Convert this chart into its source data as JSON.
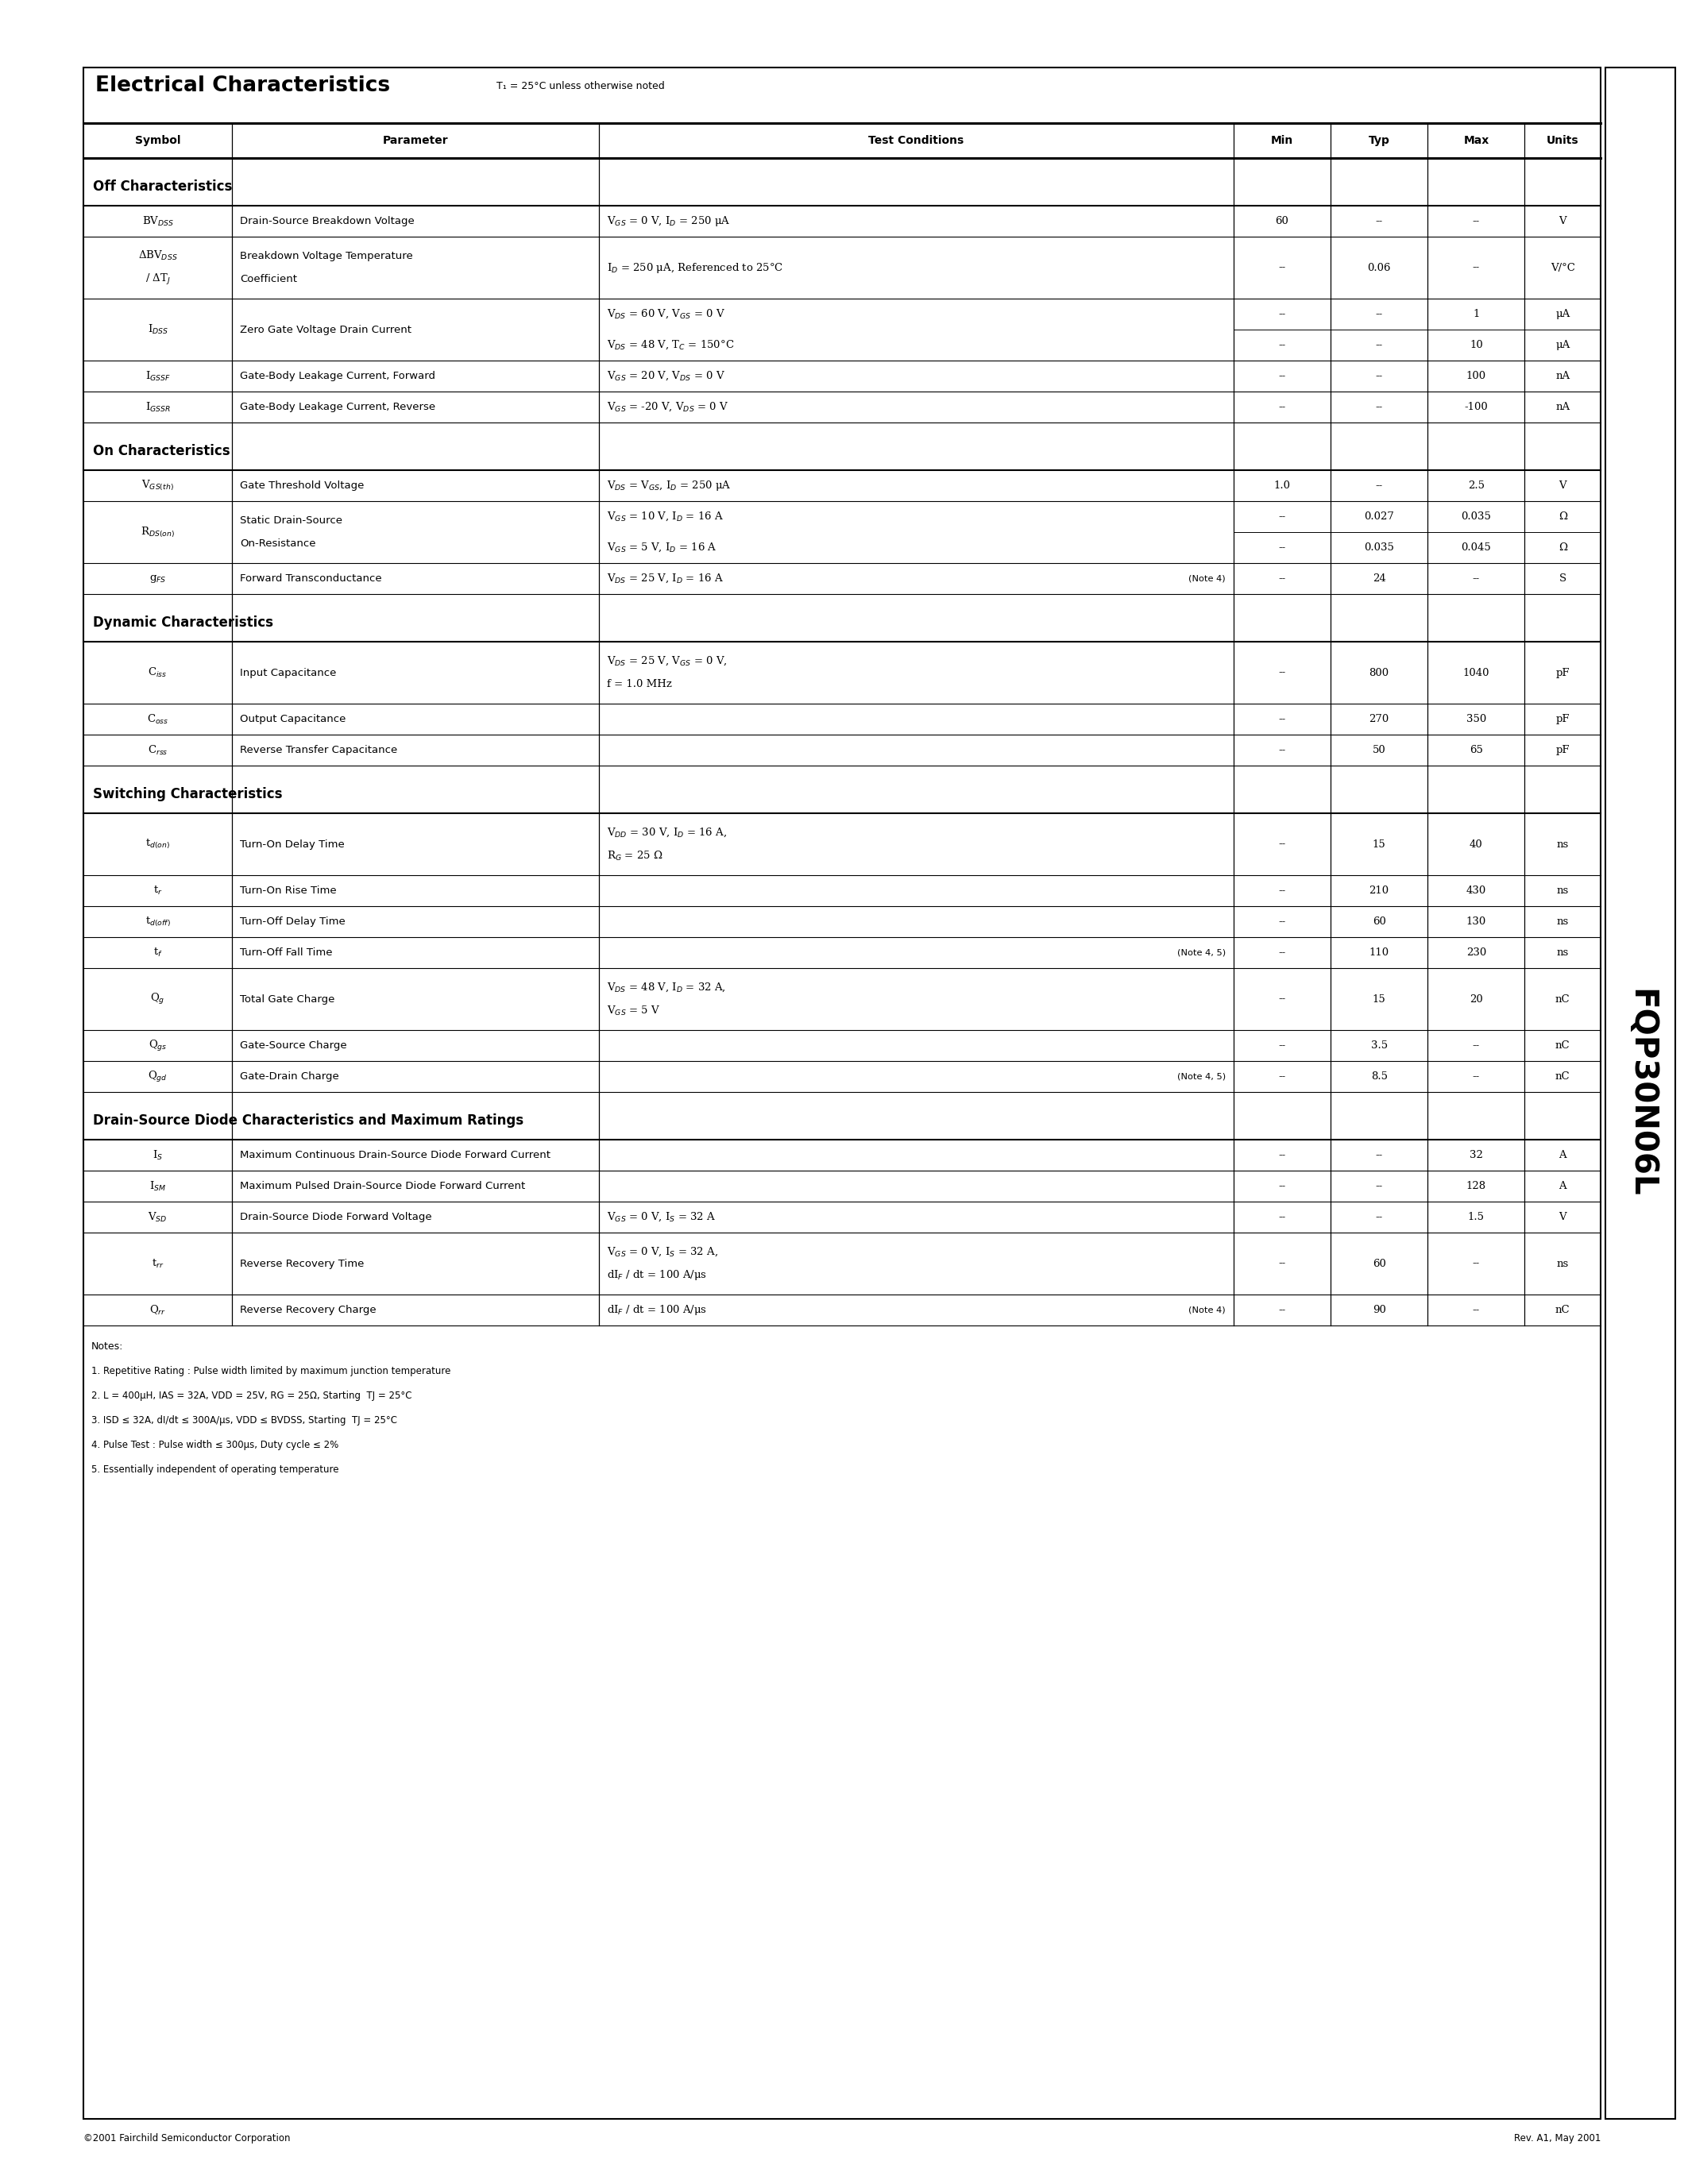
{
  "page_bg": "#ffffff",
  "title": "Electrical Characteristics",
  "title_note": "T₁ = 25°C unless otherwise noted",
  "sidebar_text": "FQP30N06L",
  "header_cols": [
    "Symbol",
    "Parameter",
    "Test Conditions",
    "Min",
    "Typ",
    "Max",
    "Units"
  ],
  "footer_left": "©2001 Fairchild Semiconductor Corporation",
  "footer_right": "Rev. A1, May 2001",
  "sections": [
    {
      "name": "Off Characteristics",
      "rows": [
        {
          "symbol": "BV$_{DSS}$",
          "parameter": "Drain-Source Breakdown Voltage",
          "conditions": "V$_{GS}$ = 0 V, I$_D$ = 250 μA",
          "min": "60",
          "typ": "--",
          "max": "--",
          "units": "V",
          "note": "",
          "double": false
        },
        {
          "symbol": "ΔBV$_{DSS}$\n/ ΔT$_J$",
          "parameter": "Breakdown Voltage Temperature\nCoefficient",
          "conditions": "I$_D$ = 250 μA, Referenced to 25°C",
          "min": "--",
          "typ": "0.06",
          "max": "--",
          "units": "V/°C",
          "note": "",
          "double": false
        },
        {
          "symbol": "I$_{DSS}$",
          "parameter": "Zero Gate Voltage Drain Current",
          "conditions": "V$_{DS}$ = 60 V, V$_{GS}$ = 0 V",
          "conditions2": "V$_{DS}$ = 48 V, T$_C$ = 150°C",
          "min": "--",
          "typ": "--",
          "max": "1",
          "units": "μA",
          "min2": "--",
          "typ2": "--",
          "max2": "10",
          "units2": "μA",
          "note": "",
          "double": true
        },
        {
          "symbol": "I$_{GSSF}$",
          "parameter": "Gate-Body Leakage Current, Forward",
          "conditions": "V$_{GS}$ = 20 V, V$_{DS}$ = 0 V",
          "min": "--",
          "typ": "--",
          "max": "100",
          "units": "nA",
          "note": "",
          "double": false
        },
        {
          "symbol": "I$_{GSSR}$",
          "parameter": "Gate-Body Leakage Current, Reverse",
          "conditions": "V$_{GS}$ = -20 V, V$_{DS}$ = 0 V",
          "min": "--",
          "typ": "--",
          "max": "-100",
          "units": "nA",
          "note": "",
          "double": false
        }
      ]
    },
    {
      "name": "On Characteristics",
      "rows": [
        {
          "symbol": "V$_{GS(th)}$",
          "parameter": "Gate Threshold Voltage",
          "conditions": "V$_{DS}$ = V$_{GS}$, I$_D$ = 250 μA",
          "min": "1.0",
          "typ": "--",
          "max": "2.5",
          "units": "V",
          "note": "",
          "double": false
        },
        {
          "symbol": "R$_{DS(on)}$",
          "parameter": "Static Drain-Source\nOn-Resistance",
          "conditions": "V$_{GS}$ = 10 V, I$_D$ = 16 A",
          "conditions2": "V$_{GS}$ = 5 V, I$_D$ = 16 A",
          "min": "--",
          "typ": "0.027",
          "max": "0.035",
          "units": "Ω",
          "min2": "--",
          "typ2": "0.035",
          "max2": "0.045",
          "units2": "Ω",
          "note": "",
          "double": true
        },
        {
          "symbol": "g$_{FS}$",
          "parameter": "Forward Transconductance",
          "conditions": "V$_{DS}$ = 25 V, I$_D$ = 16 A",
          "min": "--",
          "typ": "24",
          "max": "--",
          "units": "S",
          "note": "(Note 4)",
          "double": false
        }
      ]
    },
    {
      "name": "Dynamic Characteristics",
      "rows": [
        {
          "symbol": "C$_{iss}$",
          "parameter": "Input Capacitance",
          "conditions": "V$_{DS}$ = 25 V, V$_{GS}$ = 0 V,\nf = 1.0 MHz",
          "min": "--",
          "typ": "800",
          "max": "1040",
          "units": "pF",
          "note": "",
          "double": false
        },
        {
          "symbol": "C$_{oss}$",
          "parameter": "Output Capacitance",
          "conditions": "",
          "min": "--",
          "typ": "270",
          "max": "350",
          "units": "pF",
          "note": "",
          "double": false
        },
        {
          "symbol": "C$_{rss}$",
          "parameter": "Reverse Transfer Capacitance",
          "conditions": "",
          "min": "--",
          "typ": "50",
          "max": "65",
          "units": "pF",
          "note": "",
          "double": false
        }
      ]
    },
    {
      "name": "Switching Characteristics",
      "rows": [
        {
          "symbol": "t$_{d(on)}$",
          "parameter": "Turn-On Delay Time",
          "conditions": "V$_{DD}$ = 30 V, I$_D$ = 16 A,\nR$_G$ = 25 Ω",
          "min": "--",
          "typ": "15",
          "max": "40",
          "units": "ns",
          "note": "",
          "double": false
        },
        {
          "symbol": "t$_r$",
          "parameter": "Turn-On Rise Time",
          "conditions": "",
          "min": "--",
          "typ": "210",
          "max": "430",
          "units": "ns",
          "note": "",
          "double": false
        },
        {
          "symbol": "t$_{d(off)}$",
          "parameter": "Turn-Off Delay Time",
          "conditions": "",
          "min": "--",
          "typ": "60",
          "max": "130",
          "units": "ns",
          "note": "",
          "double": false
        },
        {
          "symbol": "t$_f$",
          "parameter": "Turn-Off Fall Time",
          "conditions": "",
          "min": "--",
          "typ": "110",
          "max": "230",
          "units": "ns",
          "note": "(Note 4, 5)",
          "double": false
        },
        {
          "symbol": "Q$_g$",
          "parameter": "Total Gate Charge",
          "conditions": "V$_{DS}$ = 48 V, I$_D$ = 32 A,\nV$_{GS}$ = 5 V",
          "min": "--",
          "typ": "15",
          "max": "20",
          "units": "nC",
          "note": "",
          "double": false
        },
        {
          "symbol": "Q$_{gs}$",
          "parameter": "Gate-Source Charge",
          "conditions": "",
          "min": "--",
          "typ": "3.5",
          "max": "--",
          "units": "nC",
          "note": "",
          "double": false
        },
        {
          "symbol": "Q$_{gd}$",
          "parameter": "Gate-Drain Charge",
          "conditions": "",
          "min": "--",
          "typ": "8.5",
          "max": "--",
          "units": "nC",
          "note": "(Note 4, 5)",
          "double": false
        }
      ]
    },
    {
      "name": "Drain-Source Diode Characteristics and Maximum Ratings",
      "rows": [
        {
          "symbol": "I$_S$",
          "parameter": "Maximum Continuous Drain-Source Diode Forward Current",
          "conditions": "",
          "min": "--",
          "typ": "--",
          "max": "32",
          "units": "A",
          "note": "",
          "double": false
        },
        {
          "symbol": "I$_{SM}$",
          "parameter": "Maximum Pulsed Drain-Source Diode Forward Current",
          "conditions": "",
          "min": "--",
          "typ": "--",
          "max": "128",
          "units": "A",
          "note": "",
          "double": false
        },
        {
          "symbol": "V$_{SD}$",
          "parameter": "Drain-Source Diode Forward Voltage",
          "conditions": "V$_{GS}$ = 0 V, I$_S$ = 32 A",
          "min": "--",
          "typ": "--",
          "max": "1.5",
          "units": "V",
          "note": "",
          "double": false
        },
        {
          "symbol": "t$_{rr}$",
          "parameter": "Reverse Recovery Time",
          "conditions": "V$_{GS}$ = 0 V, I$_S$ = 32 A,\ndI$_F$ / dt = 100 A/μs",
          "min": "--",
          "typ": "60",
          "max": "--",
          "units": "ns",
          "note": "",
          "double": false
        },
        {
          "symbol": "Q$_{rr}$",
          "parameter": "Reverse Recovery Charge",
          "conditions": "dI$_F$ / dt = 100 A/μs",
          "min": "--",
          "typ": "90",
          "max": "--",
          "units": "nC",
          "note": "(Note 4)",
          "double": false
        }
      ]
    }
  ],
  "notes": [
    "Notes:",
    "1. Repetitive Rating : Pulse width limited by maximum junction temperature",
    "2. L = 400μH, IAS = 32A, VDD = 25V, RG = 25Ω, Starting  TJ = 25°C",
    "3. ISD ≤ 32A, dI/dt ≤ 300A/μs, VDD ≤ BVDSS, Starting  TJ = 25°C",
    "4. Pulse Test : Pulse width ≤ 300μs, Duty cycle ≤ 2%",
    "5. Essentially independent of operating temperature"
  ]
}
